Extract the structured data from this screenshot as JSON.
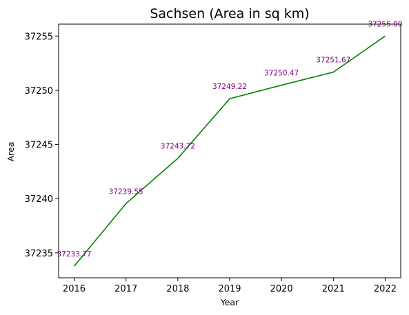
{
  "chart_data": {
    "type": "line",
    "title": "Sachsen (Area in sq km)",
    "xlabel": "Year",
    "ylabel": "Area",
    "x": [
      2016,
      2017,
      2018,
      2019,
      2020,
      2021,
      2022
    ],
    "y": [
      37233.77,
      37239.55,
      37243.72,
      37249.22,
      37250.47,
      37251.67,
      37255.0
    ],
    "point_labels": [
      "37233.77",
      "37239.55",
      "37243.72",
      "37249.22",
      "37250.47",
      "37251.67",
      "37255.00"
    ],
    "xticks": [
      "2016",
      "2017",
      "2018",
      "2019",
      "2020",
      "2021",
      "2022"
    ],
    "yticks": [
      {
        "value": 37235,
        "label": "37235"
      },
      {
        "value": 37240,
        "label": "37240"
      },
      {
        "value": 37245,
        "label": "37245"
      },
      {
        "value": 37250,
        "label": "37250"
      },
      {
        "value": 37255,
        "label": "37255"
      }
    ],
    "xlim": [
      2015.7,
      2022.3
    ],
    "ylim": [
      37232.7,
      37256.1
    ],
    "grid": false,
    "line_color": "#008000",
    "label_color": "#800080"
  }
}
